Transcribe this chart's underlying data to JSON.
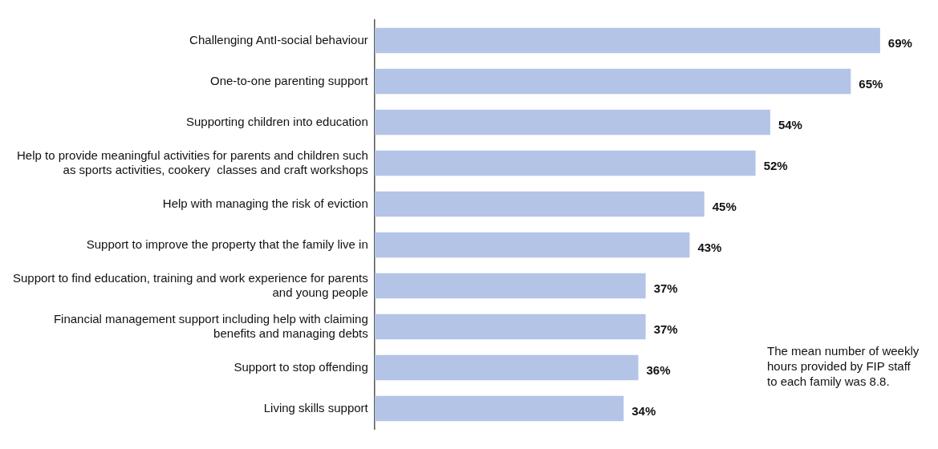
{
  "chart_data": {
    "type": "bar",
    "orientation": "horizontal",
    "categories": [
      "Challenging AntI-social behaviour",
      "One-to-one parenting support",
      "Supporting children into education",
      "Help to provide meaningful activities for parents and children such as sports activities, cookery  classes and craft workshops",
      "Help with managing the risk of eviction",
      "Support to improve the property that the family live in",
      "Support to find education, training and work experience for parents and young people",
      "Financial management support including help with claiming benefits and managing debts",
      "Support to stop offending",
      "Living skills support"
    ],
    "values": [
      69,
      65,
      54,
      52,
      45,
      43,
      37,
      37,
      36,
      34
    ],
    "color": "#b4c4e6",
    "tick_labels": "y",
    "grid": false,
    "legend": false,
    "value_labels": [
      "69%",
      "65%",
      "54%",
      "52%",
      "45%",
      "43%",
      "37%",
      "37%",
      "36%",
      "34%"
    ],
    "annotations": [
      "The mean number of weekly hours provided by FIP staff to each family was 8.8."
    ]
  }
}
